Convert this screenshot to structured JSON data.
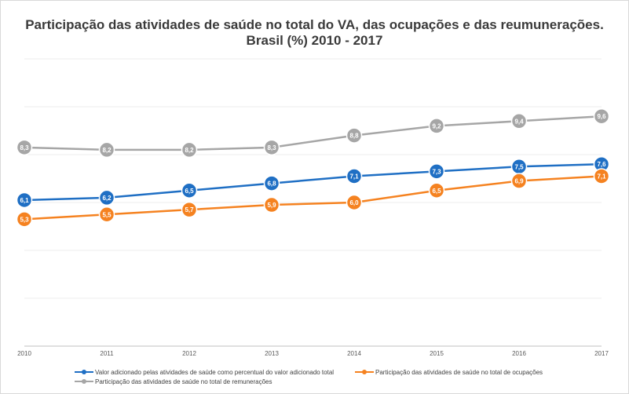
{
  "chart_data": {
    "type": "line",
    "title": "Participação das atividades de saúde no total do VA, das ocupações e das reumunerações.",
    "subtitle": "Brasil (%)  2010 - 2017",
    "categories": [
      "2010",
      "2011",
      "2012",
      "2013",
      "2014",
      "2015",
      "2016",
      "2017"
    ],
    "ylim": [
      0,
      12
    ],
    "grid": true,
    "legend_position": "bottom",
    "series": [
      {
        "name": "Valor adicionado pelas atividades de saúde como percentual do valor adicionado  total",
        "color": "#1f6fc4",
        "values": [
          6.1,
          6.2,
          6.5,
          6.8,
          7.1,
          7.3,
          7.5,
          7.6
        ],
        "labels": [
          "6,1",
          "6,2",
          "6,5",
          "6,8",
          "7,1",
          "7,3",
          "7,5",
          "7,6"
        ]
      },
      {
        "name": "Participação das atividades de saúde no total de ocupações",
        "color": "#f58220",
        "values": [
          5.3,
          5.5,
          5.7,
          5.9,
          6.0,
          6.5,
          6.9,
          7.1
        ],
        "labels": [
          "5,3",
          "5,5",
          "5,7",
          "5,9",
          "6,0",
          "6,5",
          "6,9",
          "7,1"
        ]
      },
      {
        "name": "Participação das atividades de saúde no total de remunerações",
        "color": "#a6a6a6",
        "values": [
          8.3,
          8.2,
          8.2,
          8.3,
          8.8,
          9.2,
          9.4,
          9.6
        ],
        "labels": [
          "8,3",
          "8,2",
          "8,2",
          "8,3",
          "8,8",
          "9,2",
          "9,4",
          "9,6"
        ]
      }
    ]
  }
}
